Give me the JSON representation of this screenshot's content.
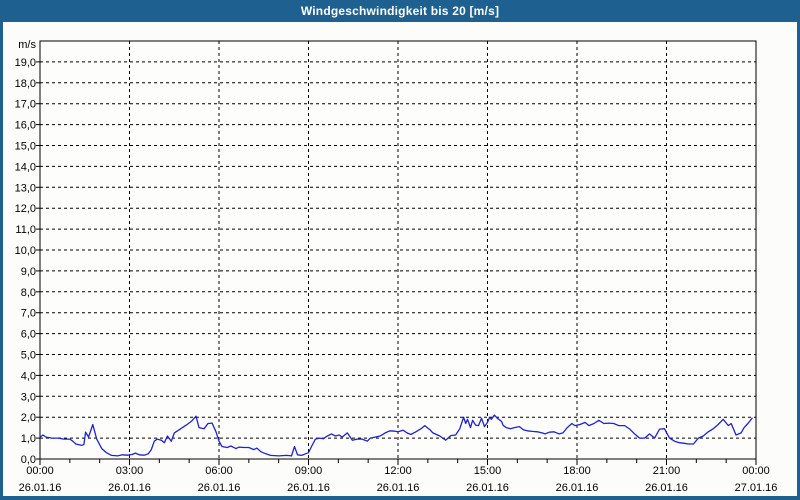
{
  "window": {
    "title": "Windgeschwindigkeit bis 20 [m/s]"
  },
  "colors": {
    "frame": "#1E6191",
    "title_text": "#FFFFFF",
    "background": "#FCFDFA",
    "plot_background": "#FDFEFC",
    "axis": "#000000",
    "grid": "#000000",
    "line": "#2121CC",
    "label_text": "#000000"
  },
  "chart_data": {
    "type": "line",
    "title": "Windgeschwindigkeit bis 20 [m/s]",
    "unit_label": "m/s",
    "legend": "none",
    "grid": "dashed",
    "x_axis": {
      "span_hours": 24,
      "minor_tick_hours": 1,
      "major_tick_hours": 3,
      "start_label": "26.01.16 00:00",
      "end_label": "27.01.16 00:00",
      "ticks": [
        {
          "h": 0,
          "time": "00:00",
          "date": "26.01.16"
        },
        {
          "h": 3,
          "time": "03:00",
          "date": "26.01.16"
        },
        {
          "h": 6,
          "time": "06:00",
          "date": "26.01.16"
        },
        {
          "h": 9,
          "time": "09:00",
          "date": "26.01.16"
        },
        {
          "h": 12,
          "time": "12:00",
          "date": "26.01.16"
        },
        {
          "h": 15,
          "time": "15:00",
          "date": "26.01.16"
        },
        {
          "h": 18,
          "time": "18:00",
          "date": "26.01.16"
        },
        {
          "h": 21,
          "time": "21:00",
          "date": "26.01.16"
        },
        {
          "h": 24,
          "time": "00:00",
          "date": "27.01.16"
        }
      ]
    },
    "y_axis": {
      "min": 0,
      "max": 20,
      "tick_step": 1,
      "labels": [
        "0,0",
        "1,0",
        "2,0",
        "3,0",
        "4,0",
        "5,0",
        "6,0",
        "7,0",
        "8,0",
        "9,0",
        "10,0",
        "11,0",
        "12,0",
        "13,0",
        "14,0",
        "15,0",
        "16,0",
        "17,0",
        "18,0",
        "19,0"
      ]
    },
    "series": [
      {
        "name": "Windgeschwindigkeit",
        "unit": "m/s",
        "color": "#2121CC",
        "points": [
          [
            0.0,
            1.05
          ],
          [
            0.1,
            1.15
          ],
          [
            0.2,
            1.05
          ],
          [
            0.4,
            1.0
          ],
          [
            0.6,
            1.0
          ],
          [
            0.8,
            0.95
          ],
          [
            1.0,
            0.95
          ],
          [
            1.1,
            0.85
          ],
          [
            1.2,
            0.72
          ],
          [
            1.4,
            0.65
          ],
          [
            1.47,
            0.7
          ],
          [
            1.53,
            1.28
          ],
          [
            1.63,
            1.05
          ],
          [
            1.77,
            1.65
          ],
          [
            1.9,
            0.95
          ],
          [
            2.07,
            0.5
          ],
          [
            2.23,
            0.3
          ],
          [
            2.4,
            0.17
          ],
          [
            2.6,
            0.15
          ],
          [
            2.77,
            0.2
          ],
          [
            2.93,
            0.18
          ],
          [
            3.1,
            0.22
          ],
          [
            3.2,
            0.28
          ],
          [
            3.33,
            0.2
          ],
          [
            3.5,
            0.18
          ],
          [
            3.63,
            0.25
          ],
          [
            3.73,
            0.45
          ],
          [
            3.83,
            0.85
          ],
          [
            3.93,
            0.95
          ],
          [
            4.07,
            0.9
          ],
          [
            4.17,
            0.78
          ],
          [
            4.27,
            1.1
          ],
          [
            4.4,
            0.85
          ],
          [
            4.5,
            1.25
          ],
          [
            4.67,
            1.4
          ],
          [
            4.9,
            1.62
          ],
          [
            5.07,
            1.8
          ],
          [
            5.23,
            2.05
          ],
          [
            5.33,
            1.5
          ],
          [
            5.5,
            1.45
          ],
          [
            5.63,
            1.7
          ],
          [
            5.77,
            1.72
          ],
          [
            5.9,
            1.3
          ],
          [
            6.0,
            0.85
          ],
          [
            6.1,
            0.6
          ],
          [
            6.27,
            0.55
          ],
          [
            6.4,
            0.62
          ],
          [
            6.57,
            0.5
          ],
          [
            6.67,
            0.57
          ],
          [
            6.83,
            0.55
          ],
          [
            7.0,
            0.55
          ],
          [
            7.17,
            0.45
          ],
          [
            7.27,
            0.52
          ],
          [
            7.4,
            0.35
          ],
          [
            7.57,
            0.25
          ],
          [
            7.73,
            0.17
          ],
          [
            8.0,
            0.15
          ],
          [
            8.27,
            0.17
          ],
          [
            8.43,
            0.15
          ],
          [
            8.53,
            0.6
          ],
          [
            8.63,
            0.2
          ],
          [
            8.77,
            0.17
          ],
          [
            8.9,
            0.25
          ],
          [
            9.0,
            0.3
          ],
          [
            9.1,
            0.6
          ],
          [
            9.23,
            0.95
          ],
          [
            9.37,
            1.0
          ],
          [
            9.5,
            0.97
          ],
          [
            9.63,
            1.1
          ],
          [
            9.77,
            1.2
          ],
          [
            9.9,
            1.1
          ],
          [
            10.03,
            1.15
          ],
          [
            10.13,
            1.05
          ],
          [
            10.3,
            1.25
          ],
          [
            10.47,
            0.9
          ],
          [
            10.63,
            0.95
          ],
          [
            10.8,
            0.95
          ],
          [
            10.97,
            0.85
          ],
          [
            11.07,
            1.0
          ],
          [
            11.23,
            1.05
          ],
          [
            11.4,
            1.1
          ],
          [
            11.57,
            1.25
          ],
          [
            11.73,
            1.35
          ],
          [
            11.9,
            1.33
          ],
          [
            12.0,
            1.3
          ],
          [
            12.17,
            1.38
          ],
          [
            12.3,
            1.25
          ],
          [
            12.43,
            1.17
          ],
          [
            12.6,
            1.3
          ],
          [
            12.77,
            1.45
          ],
          [
            12.9,
            1.6
          ],
          [
            13.07,
            1.4
          ],
          [
            13.17,
            1.25
          ],
          [
            13.4,
            1.1
          ],
          [
            13.6,
            0.9
          ],
          [
            13.77,
            1.12
          ],
          [
            13.93,
            1.15
          ],
          [
            14.07,
            1.45
          ],
          [
            14.2,
            2.0
          ],
          [
            14.27,
            1.7
          ],
          [
            14.33,
            1.9
          ],
          [
            14.43,
            1.5
          ],
          [
            14.5,
            1.85
          ],
          [
            14.6,
            1.62
          ],
          [
            14.7,
            1.6
          ],
          [
            14.8,
            1.95
          ],
          [
            14.9,
            1.55
          ],
          [
            15.0,
            1.75
          ],
          [
            15.07,
            2.0
          ],
          [
            15.13,
            1.9
          ],
          [
            15.23,
            2.1
          ],
          [
            15.33,
            1.95
          ],
          [
            15.47,
            1.8
          ],
          [
            15.53,
            1.6
          ],
          [
            15.63,
            1.5
          ],
          [
            15.77,
            1.45
          ],
          [
            15.9,
            1.5
          ],
          [
            16.07,
            1.55
          ],
          [
            16.2,
            1.4
          ],
          [
            16.33,
            1.35
          ],
          [
            16.5,
            1.32
          ],
          [
            16.67,
            1.3
          ],
          [
            16.83,
            1.25
          ],
          [
            16.93,
            1.2
          ],
          [
            17.07,
            1.28
          ],
          [
            17.23,
            1.3
          ],
          [
            17.4,
            1.2
          ],
          [
            17.53,
            1.25
          ],
          [
            17.67,
            1.5
          ],
          [
            17.83,
            1.7
          ],
          [
            17.93,
            1.6
          ],
          [
            18.1,
            1.65
          ],
          [
            18.27,
            1.75
          ],
          [
            18.4,
            1.6
          ],
          [
            18.57,
            1.7
          ],
          [
            18.73,
            1.85
          ],
          [
            18.9,
            1.7
          ],
          [
            19.07,
            1.72
          ],
          [
            19.23,
            1.7
          ],
          [
            19.4,
            1.6
          ],
          [
            19.6,
            1.6
          ],
          [
            19.77,
            1.43
          ],
          [
            19.93,
            1.2
          ],
          [
            20.1,
            1.0
          ],
          [
            20.27,
            1.0
          ],
          [
            20.43,
            1.2
          ],
          [
            20.6,
            1.0
          ],
          [
            20.77,
            1.43
          ],
          [
            20.93,
            1.45
          ],
          [
            21.1,
            1.0
          ],
          [
            21.27,
            0.85
          ],
          [
            21.43,
            0.78
          ],
          [
            21.6,
            0.75
          ],
          [
            21.73,
            0.72
          ],
          [
            21.9,
            0.72
          ],
          [
            22.07,
            1.0
          ],
          [
            22.23,
            1.1
          ],
          [
            22.4,
            1.3
          ],
          [
            22.57,
            1.45
          ],
          [
            22.73,
            1.65
          ],
          [
            22.9,
            1.9
          ],
          [
            23.07,
            1.6
          ],
          [
            23.17,
            1.7
          ],
          [
            23.33,
            1.15
          ],
          [
            23.5,
            1.25
          ],
          [
            23.6,
            1.5
          ],
          [
            23.73,
            1.7
          ],
          [
            23.87,
            1.95
          ]
        ]
      }
    ]
  }
}
